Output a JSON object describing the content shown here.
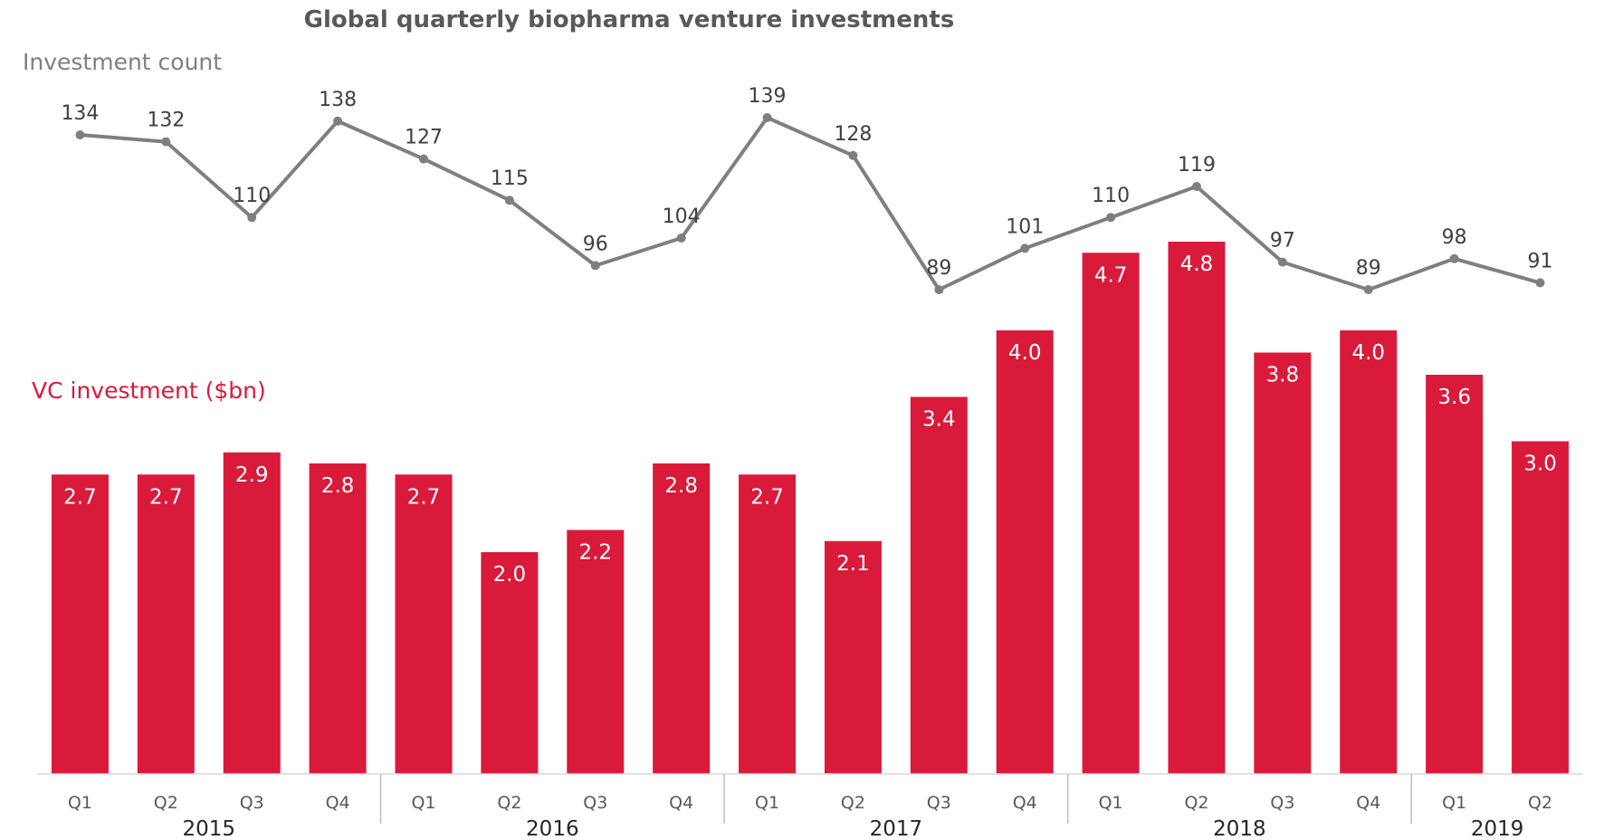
{
  "chart_data": {
    "type": "bar",
    "title": "Global quarterly biopharma venture investments",
    "categories": [
      "Q1",
      "Q2",
      "Q3",
      "Q4",
      "Q1",
      "Q2",
      "Q3",
      "Q4",
      "Q1",
      "Q2",
      "Q3",
      "Q4",
      "Q1",
      "Q2",
      "Q3",
      "Q4",
      "Q1",
      "Q2"
    ],
    "years": [
      {
        "label": "2015",
        "count": 4
      },
      {
        "label": "2016",
        "count": 4
      },
      {
        "label": "2017",
        "count": 4
      },
      {
        "label": "2018",
        "count": 4
      },
      {
        "label": "2019",
        "count": 2
      }
    ],
    "series": [
      {
        "name": "VC investment ($bn)",
        "type": "bar",
        "color": "#D91A3A",
        "values": [
          2.7,
          2.7,
          2.9,
          2.8,
          2.7,
          2.0,
          2.2,
          2.8,
          2.7,
          2.1,
          3.4,
          4.0,
          4.7,
          4.8,
          3.8,
          4.0,
          3.6,
          3.0
        ],
        "ylim": [
          0,
          5
        ]
      },
      {
        "name": "Investment count",
        "type": "line",
        "color": "#7F7F7F",
        "values": [
          134,
          132,
          110,
          138,
          127,
          115,
          96,
          104,
          139,
          128,
          89,
          101,
          110,
          119,
          97,
          89,
          98,
          91
        ],
        "ylim": [
          80,
          145
        ]
      }
    ],
    "xlabel": "",
    "ylabel": "",
    "grid": false,
    "legend": "inline-left"
  }
}
